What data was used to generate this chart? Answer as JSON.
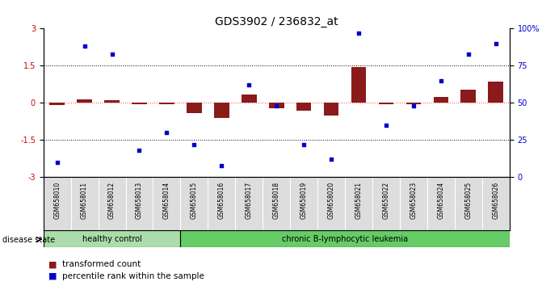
{
  "title": "GDS3902 / 236832_at",
  "samples": [
    "GSM658010",
    "GSM658011",
    "GSM658012",
    "GSM658013",
    "GSM658014",
    "GSM658015",
    "GSM658016",
    "GSM658017",
    "GSM658018",
    "GSM658019",
    "GSM658020",
    "GSM658021",
    "GSM658022",
    "GSM658023",
    "GSM658024",
    "GSM658025",
    "GSM658026"
  ],
  "red_bars": [
    -0.08,
    0.13,
    0.1,
    -0.05,
    -0.04,
    -0.4,
    -0.6,
    0.35,
    -0.2,
    -0.3,
    -0.5,
    1.45,
    -0.05,
    -0.05,
    0.25,
    0.55,
    0.85
  ],
  "blue_dots": [
    10,
    88,
    83,
    18,
    30,
    22,
    8,
    62,
    48,
    22,
    12,
    97,
    35,
    48,
    65,
    83,
    90
  ],
  "ylim_left": [
    -3,
    3
  ],
  "ylim_right": [
    0,
    100
  ],
  "yticks_left": [
    -3,
    -1.5,
    0,
    1.5,
    3
  ],
  "ytick_labels_left": [
    "-3",
    "-1.5",
    "0",
    "1.5",
    "3"
  ],
  "yticks_right": [
    0,
    25,
    50,
    75,
    100
  ],
  "ytick_labels_right": [
    "0",
    "25",
    "50",
    "75",
    "100%"
  ],
  "healthy_control_count": 5,
  "chronic_count": 12,
  "healthy_color": "#aaddaa",
  "chronic_color": "#66CC66",
  "bar_color": "#8B1A1A",
  "dot_color": "#0000CC",
  "background_color": "#FFFFFF",
  "dotted_line_color": "#000000",
  "zero_line_color": "#FF4444",
  "title_fontsize": 10,
  "tick_fontsize": 7,
  "bar_width": 0.55,
  "disease_state_label": "disease state",
  "healthy_label": "healthy control",
  "chronic_label": "chronic B-lymphocytic leukemia",
  "legend_bar": "transformed count",
  "legend_dot": "percentile rank within the sample"
}
